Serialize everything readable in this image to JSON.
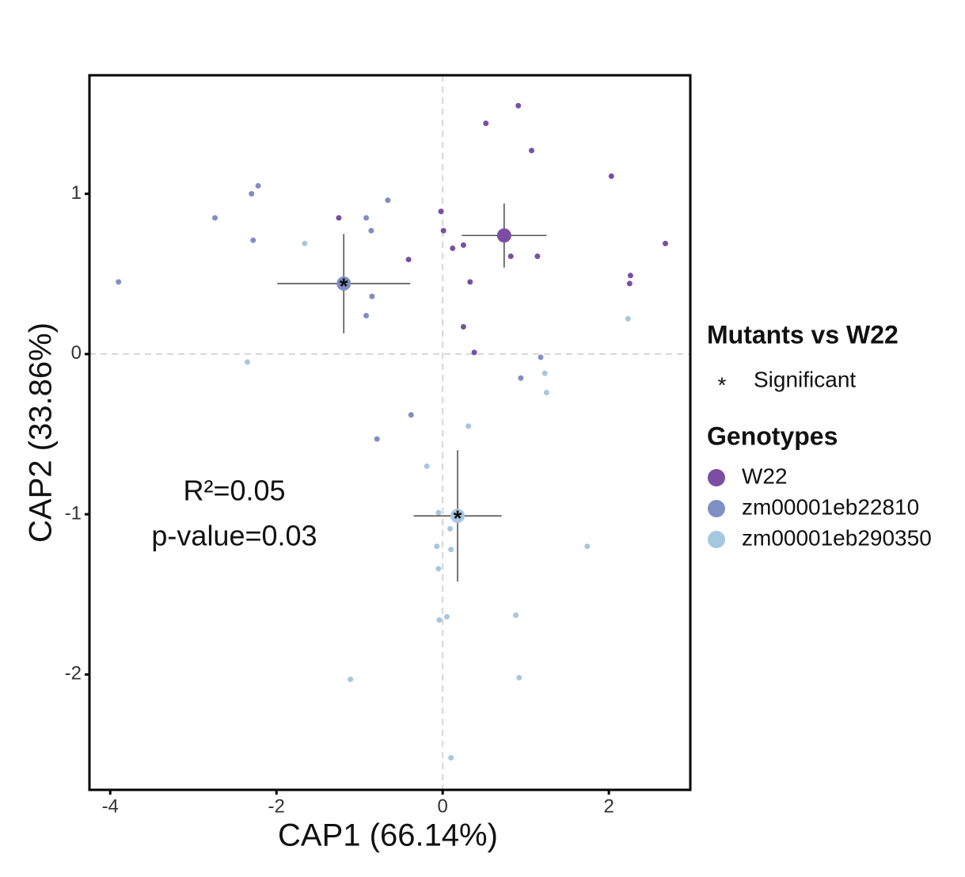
{
  "chart_data": {
    "type": "scatter",
    "x_label": "CAP1 (66.14%)",
    "y_label": "CAP2 (33.86%)",
    "xlim": [
      -4.25,
      2.98
    ],
    "ylim": [
      -2.72,
      1.74
    ],
    "xticks": [
      -4,
      -2,
      0,
      2
    ],
    "yticks": [
      -2,
      -1,
      0,
      1
    ],
    "zero_lines": true,
    "annotations": [
      "R²=0.05",
      "p-value=0.03"
    ],
    "significance": {
      "title": "Mutants vs W22",
      "symbol": "*",
      "label": "Significant"
    },
    "legend_title": "Genotypes",
    "series": [
      {
        "name": "W22",
        "color": "#7b4ea3",
        "x": [
          0.91,
          0.52,
          1.07,
          2.03,
          -0.02,
          -1.25,
          0.01,
          0.25,
          0.12,
          2.68,
          0.82,
          1.14,
          -0.41,
          2.26,
          2.25,
          0.33,
          0.25,
          0.38
        ],
        "y": [
          1.55,
          1.44,
          1.27,
          1.11,
          0.89,
          0.85,
          0.77,
          0.68,
          0.66,
          0.69,
          0.61,
          0.61,
          0.59,
          0.49,
          0.44,
          0.45,
          0.17,
          0.01
        ],
        "centroid": {
          "x": 0.74,
          "y": 0.74,
          "xerr": 0.51,
          "yerr": 0.2,
          "significant": false
        }
      },
      {
        "name": "zm00001eb22810",
        "color": "#7f8fc4",
        "x": [
          -2.22,
          -2.3,
          -0.66,
          -2.74,
          -0.92,
          -0.86,
          -2.28,
          -3.9,
          -0.85,
          -0.92,
          1.18,
          0.94,
          -0.38,
          -0.79
        ],
        "y": [
          1.05,
          1.0,
          0.96,
          0.85,
          0.85,
          0.77,
          0.71,
          0.45,
          0.36,
          0.24,
          -0.02,
          -0.15,
          -0.38,
          -0.53
        ],
        "centroid": {
          "x": -1.19,
          "y": 0.44,
          "xerr": 0.8,
          "yerr": 0.31,
          "significant": true
        }
      },
      {
        "name": "zm00001eb290350",
        "color": "#a6c8df",
        "x": [
          -1.66,
          2.23,
          -2.35,
          1.23,
          1.25,
          0.31,
          -0.19,
          -0.05,
          0.09,
          -0.07,
          0.1,
          1.74,
          -0.05,
          -0.04,
          0.05,
          0.88,
          -1.11,
          0.92,
          0.1
        ],
        "y": [
          0.69,
          0.22,
          -0.05,
          -0.12,
          -0.24,
          -0.45,
          -0.7,
          -0.99,
          -1.09,
          -1.2,
          -1.22,
          -1.2,
          -1.34,
          -1.66,
          -1.64,
          -1.63,
          -2.03,
          -2.02,
          -2.52
        ],
        "centroid": {
          "x": 0.18,
          "y": -1.01,
          "xerr": 0.53,
          "yerr": 0.41,
          "significant": true
        }
      }
    ]
  }
}
